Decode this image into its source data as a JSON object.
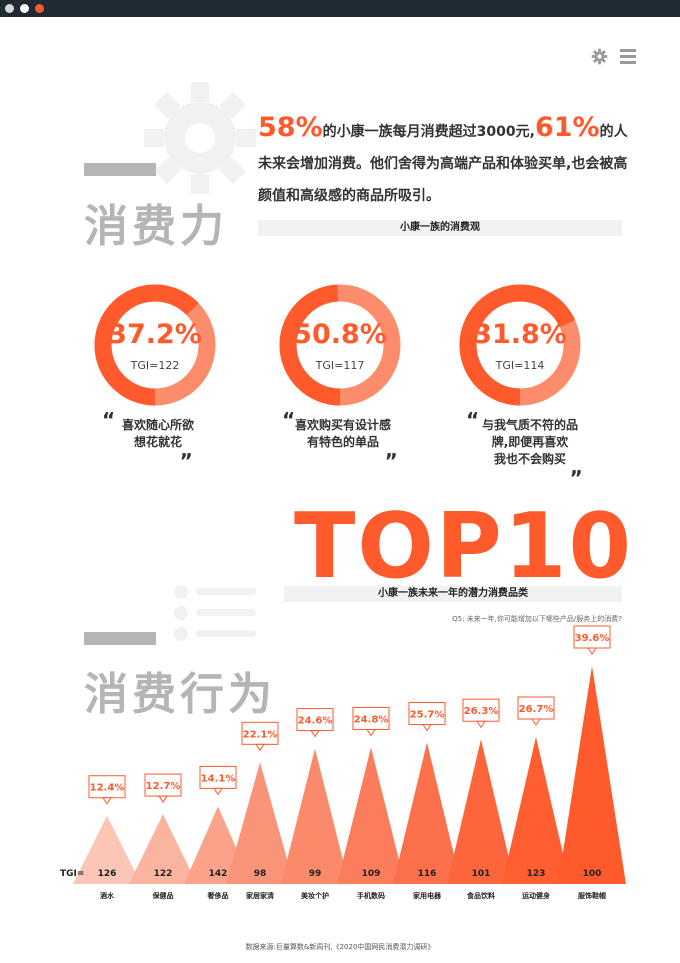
{
  "window": {
    "dots": [
      "#d9d9d9",
      "#ffffff",
      "#ff5a2c"
    ]
  },
  "toolbar": {
    "icons": [
      "gear-icon",
      "menu-icon"
    ]
  },
  "section1": {
    "title": "消费力",
    "intro_pct1": "58%",
    "intro_text1": "的小康一族每月消费超过3000元,",
    "intro_pct2": "61%",
    "intro_text2": "的人未来会增加消费。他们舍得为高端产品和体验买单,也会被高颜值和高级感的商品所吸引。",
    "subheader": "小康一族的消费观"
  },
  "rings": [
    {
      "pct": "37.2%",
      "value": 37.2,
      "tgi": "TGI=122",
      "quote_line1": "喜欢随心所欲",
      "quote_line2": "想花就花"
    },
    {
      "pct": "50.8%",
      "value": 50.8,
      "tgi": "TGI=117",
      "quote_line1": "喜欢购买有设计感",
      "quote_line2": "有特色的单品"
    },
    {
      "pct": "31.8%",
      "value": 31.8,
      "tgi": "TGI=114",
      "quote_line1": "与我气质不符的品",
      "quote_line2": "牌,即便再喜欢",
      "quote_line3": "我也不会购买"
    }
  ],
  "section2": {
    "top_label": "TOP10",
    "subheader": "小康一族未来一年的潜力消费品类",
    "question": "Q5: 未来一年,你可能增加以下哪些产品/服务上的消费?",
    "title": "消费行为",
    "tgi_prefix": "TGI="
  },
  "chart_data": {
    "type": "bar",
    "categories": [
      "酒水",
      "保健品",
      "奢侈品",
      "家居家清",
      "美妆个护",
      "手机数码",
      "家用电器",
      "食品饮料",
      "运动健身",
      "服饰鞋帽"
    ],
    "values": [
      12.4,
      12.7,
      14.1,
      22.1,
      24.6,
      24.8,
      25.7,
      26.3,
      26.7,
      39.6
    ],
    "value_labels": [
      "12.4%",
      "12.7%",
      "14.1%",
      "22.1%",
      "24.6%",
      "24.8%",
      "25.7%",
      "26.3%",
      "26.7%",
      "39.6%"
    ],
    "tgi": [
      "126",
      "122",
      "142",
      "98",
      "99",
      "109",
      "116",
      "101",
      "123",
      "100"
    ],
    "colors": [
      "#fcc6b6",
      "#fbb4a0",
      "#fba28a",
      "#fa9478",
      "#fb8a6a",
      "#fb7d5b",
      "#fc704b",
      "#fd663c",
      "#fe5e30",
      "#ff5a2c"
    ]
  },
  "footer": {
    "source": "数据来源:巨量算数&新周刊,《2020中国网民消费潜力调研》"
  },
  "colors": {
    "accent": "#ff5a2c",
    "ring_light": "#fc8c6c",
    "gray": "#b5b5b5"
  }
}
